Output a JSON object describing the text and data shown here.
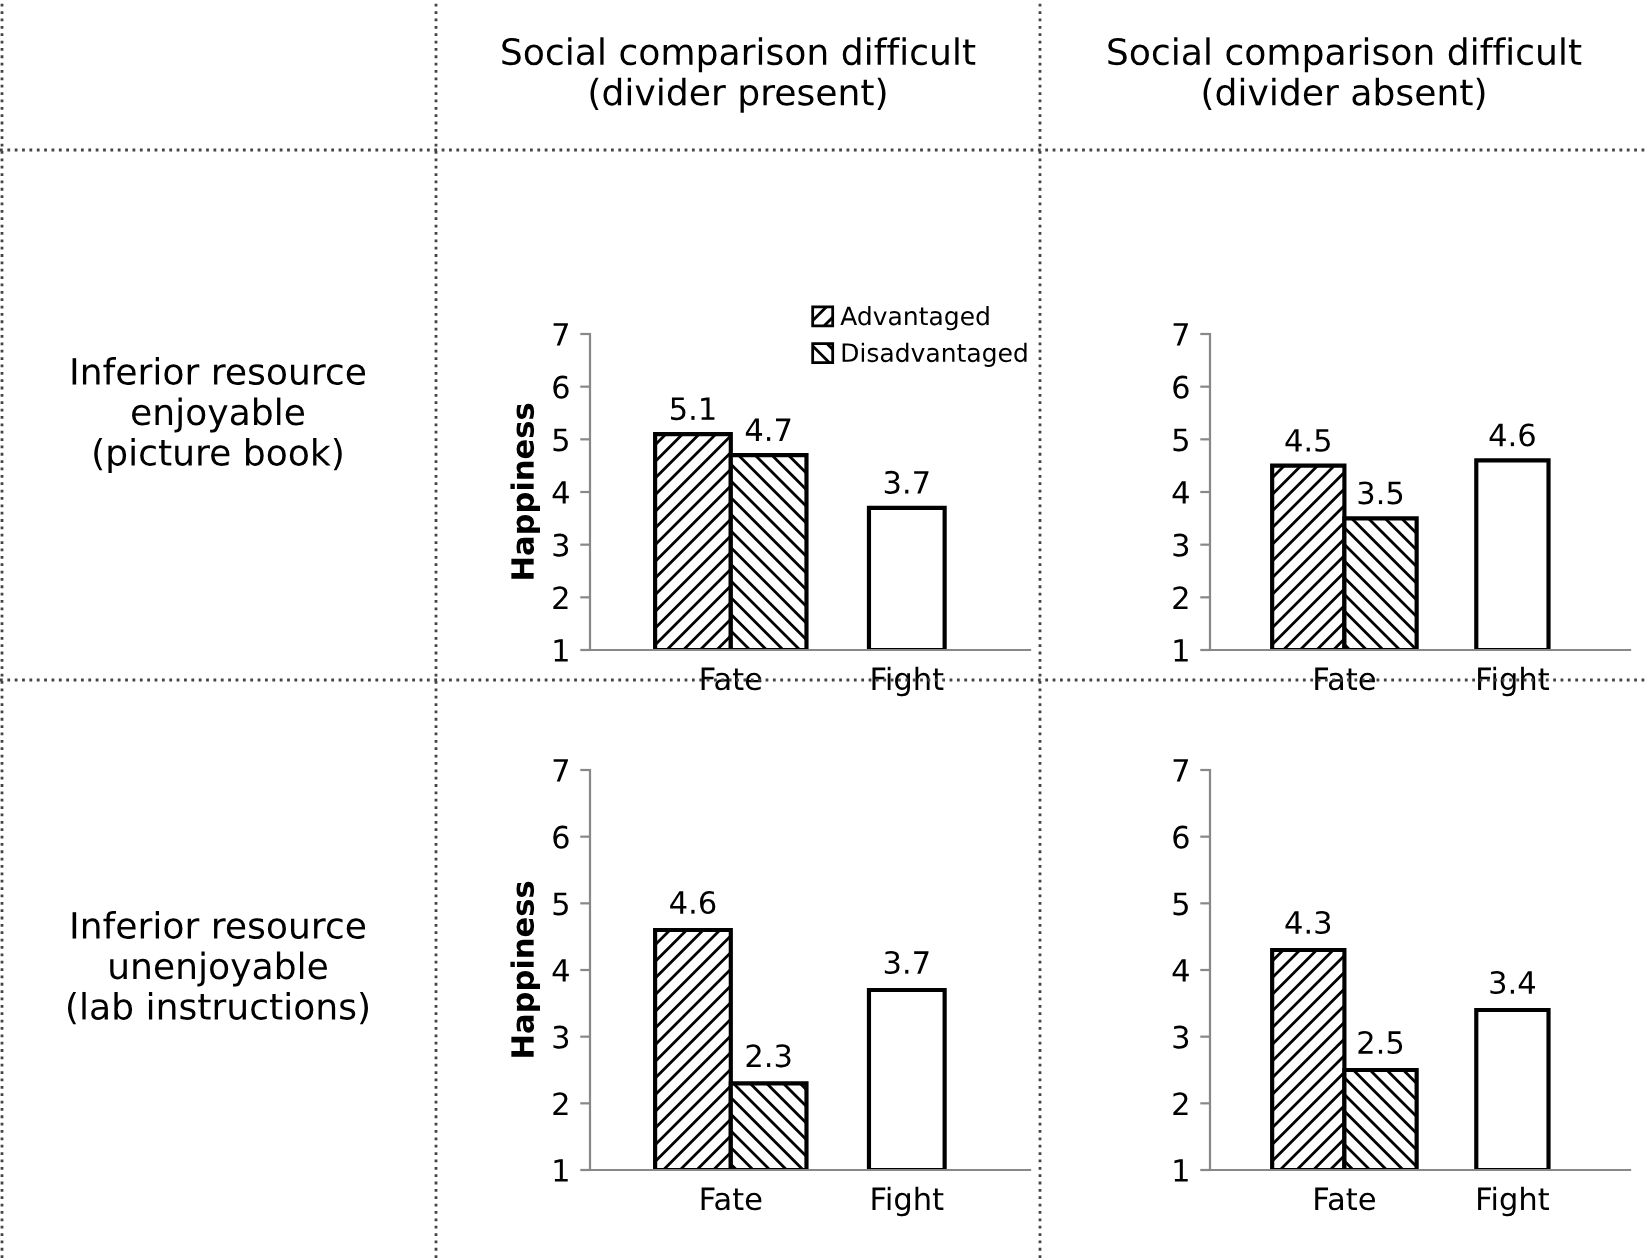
{
  "chart_data": [
    {
      "type": "bar",
      "title": "Social comparison difficult\n(divider present)",
      "ylabel": "Happiness",
      "annotations": [
        "Inferior resource\nenjoyable\n(picture book)"
      ],
      "categories": [
        "Fate",
        "Fight"
      ],
      "series": [
        {
          "name": "Advantaged",
          "color": "#000000",
          "values": [
            5.1,
            null
          ]
        },
        {
          "name": "Disadvantaged",
          "color": "#000000",
          "values": [
            4.7,
            null
          ]
        },
        {
          "color": "#ffffff",
          "values": [
            null,
            3.7
          ]
        }
      ],
      "ylim": [
        1,
        7
      ],
      "yticks": [
        1,
        2,
        3,
        4,
        5,
        6,
        7
      ],
      "data_labels": true,
      "legend": "top right",
      "grid": false
    },
    {
      "type": "bar",
      "title": "Social comparison difficult\n(divider absent)",
      "categories": [
        "Fate",
        "Fight"
      ],
      "series": [
        {
          "color": "#000000",
          "values": [
            4.5,
            null
          ]
        },
        {
          "color": "#000000",
          "values": [
            3.5,
            null
          ]
        },
        {
          "color": "#ffffff",
          "values": [
            null,
            4.6
          ]
        }
      ],
      "ylim": [
        1,
        7
      ],
      "yticks": [
        1,
        2,
        3,
        4,
        5,
        6,
        7
      ],
      "data_labels": true,
      "grid": false
    },
    {
      "type": "bar",
      "ylabel": "Happiness",
      "annotations": [
        "Inferior resource\nunenjoyable\n(lab instructions)"
      ],
      "categories": [
        "Fate",
        "Fight"
      ],
      "series": [
        {
          "color": "#000000",
          "values": [
            4.6,
            null
          ]
        },
        {
          "color": "#000000",
          "values": [
            2.3,
            null
          ]
        },
        {
          "color": "#ffffff",
          "values": [
            null,
            3.7
          ]
        }
      ],
      "ylim": [
        1,
        7
      ],
      "yticks": [
        1,
        2,
        3,
        4,
        5,
        6,
        7
      ],
      "data_labels": true,
      "grid": false
    },
    {
      "type": "bar",
      "categories": [
        "Fate",
        "Fight"
      ],
      "series": [
        {
          "color": "#000000",
          "values": [
            4.3,
            null
          ]
        },
        {
          "color": "#000000",
          "values": [
            2.5,
            null
          ]
        },
        {
          "color": "#ffffff",
          "values": [
            null,
            3.4
          ]
        }
      ],
      "ylim": [
        1,
        7
      ],
      "yticks": [
        1,
        2,
        3,
        4,
        5,
        6,
        7
      ],
      "data_labels": true,
      "grid": false
    }
  ]
}
